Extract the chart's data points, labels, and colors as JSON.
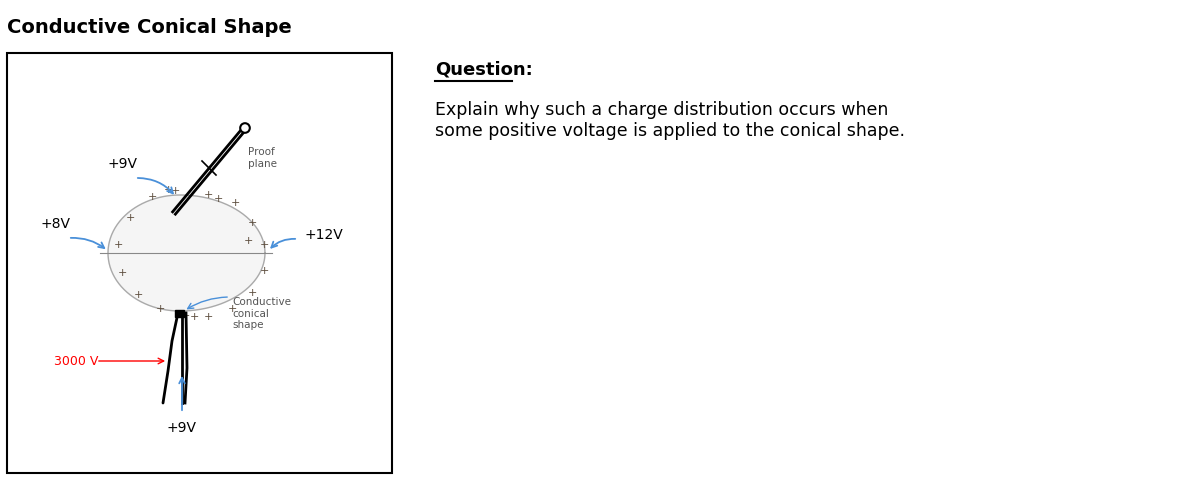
{
  "title": "Conductive Conical Shape",
  "question_label": "Question:",
  "question_text": "Explain why such a charge distribution occurs when\nsome positive voltage is applied to the conical shape.",
  "bg_color": "#ffffff",
  "box_color": "#000000",
  "label_9V_top": "+9V",
  "label_8V": "+8V",
  "label_12V": "+12V",
  "label_9V_bot": "+9V",
  "label_3000V": "3000 V",
  "label_proof": "Proof\nplane",
  "label_conical": "Conductive\nconical\nshape",
  "plus_color": "#5a4a3a",
  "arrow_color": "#4a90d9",
  "cone_color": "#000000",
  "shape_edge_color": "#aaaaaa",
  "shape_face_color": "#f5f5f5"
}
